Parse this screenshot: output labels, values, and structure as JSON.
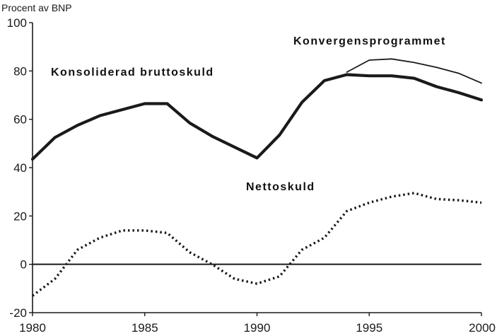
{
  "chart_data": {
    "type": "line",
    "ylabel": "Procent av BNP",
    "xlim": [
      1980,
      2000
    ],
    "ylim": [
      -20,
      100
    ],
    "xticks": [
      "1980",
      "1985",
      "1990",
      "1995",
      "2000"
    ],
    "yticks": [
      "100",
      "80",
      "60",
      "40",
      "20",
      "0",
      "-20"
    ],
    "grid": false,
    "zero_line": true,
    "series": [
      {
        "name": "Konsoliderad bruttoskuld",
        "style": "solid-thick",
        "color": "#1a1a1a",
        "x": [
          1980,
          1981,
          1982,
          1983,
          1984,
          1985,
          1986,
          1987,
          1988,
          1989,
          1990,
          1991,
          1992,
          1993,
          1994,
          1995,
          1996,
          1997,
          1998,
          1999,
          2000
        ],
        "values": [
          43.5,
          52.5,
          57.5,
          61.5,
          64,
          66.5,
          66.5,
          58.5,
          53,
          48.5,
          44,
          53.5,
          67,
          76,
          78.5,
          78,
          78,
          77,
          73.5,
          71,
          68
        ]
      },
      {
        "name": "Konvergensprogrammet",
        "style": "solid-thin",
        "color": "#1a1a1a",
        "x": [
          1994,
          1995,
          1996,
          1997,
          1998,
          1999,
          2000
        ],
        "values": [
          79.5,
          84.5,
          85,
          83.5,
          81.5,
          79,
          75
        ]
      },
      {
        "name": "Nettoskuld",
        "style": "dotted",
        "color": "#1a1a1a",
        "x": [
          1980,
          1981,
          1982,
          1983,
          1984,
          1985,
          1986,
          1987,
          1988,
          1989,
          1990,
          1991,
          1992,
          1993,
          1994,
          1995,
          1996,
          1997,
          1998,
          1999,
          2000
        ],
        "values": [
          -13,
          -6,
          6,
          11,
          14,
          14,
          13,
          5,
          0,
          -6,
          -8,
          -5,
          6,
          11,
          22,
          25.5,
          28,
          29.5,
          27,
          26.5,
          25.5
        ]
      }
    ],
    "annotations": [
      {
        "text": "Konsoliderad bruttoskuld",
        "series": 0
      },
      {
        "text": "Konvergensprogrammet",
        "series": 1
      },
      {
        "text": "Nettoskuld",
        "series": 2
      }
    ]
  }
}
